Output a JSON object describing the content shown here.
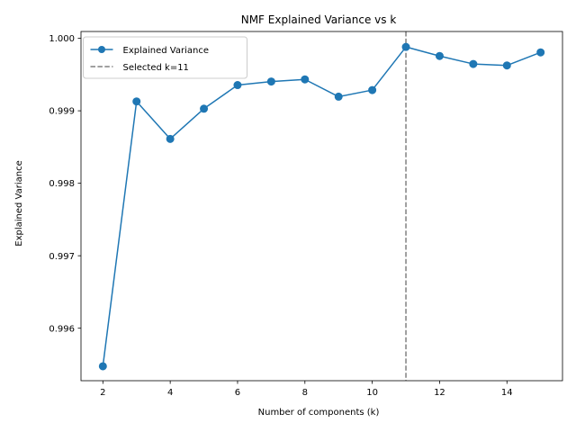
{
  "chart_data": {
    "type": "line",
    "title": "NMF Explained Variance vs k",
    "xlabel": "Number of components (k)",
    "ylabel": "Explained Variance",
    "xlim": [
      1.35,
      15.65
    ],
    "ylim": [
      0.995276,
      1.000094
    ],
    "xticks": [
      2,
      4,
      6,
      8,
      10,
      12,
      14
    ],
    "xtick_labels": [
      "2",
      "4",
      "6",
      "8",
      "10",
      "12",
      "14"
    ],
    "yticks": [
      0.996,
      0.997,
      0.998,
      0.999,
      1.0
    ],
    "ytick_labels": [
      "0.996",
      "0.997",
      "0.998",
      "0.999",
      "1.000"
    ],
    "series": [
      {
        "name": "Explained Variance",
        "color": "#1f77b4",
        "marker": "circle",
        "x": [
          2,
          3,
          4,
          5,
          6,
          7,
          8,
          9,
          10,
          11,
          12,
          13,
          14,
          15
        ],
        "y": [
          0.995475,
          0.999129,
          0.998612,
          0.999029,
          0.999355,
          0.999404,
          0.999433,
          0.999195,
          0.999286,
          0.999881,
          0.999756,
          0.999646,
          0.999626,
          0.999806
        ]
      }
    ],
    "vlines": [
      {
        "name": "Selected k=11",
        "x": 11,
        "color": "#808080",
        "style": "dashed"
      }
    ],
    "legend": {
      "placement": "upper-left",
      "entries": [
        "Explained Variance",
        "Selected k=11"
      ]
    },
    "grid": false
  }
}
